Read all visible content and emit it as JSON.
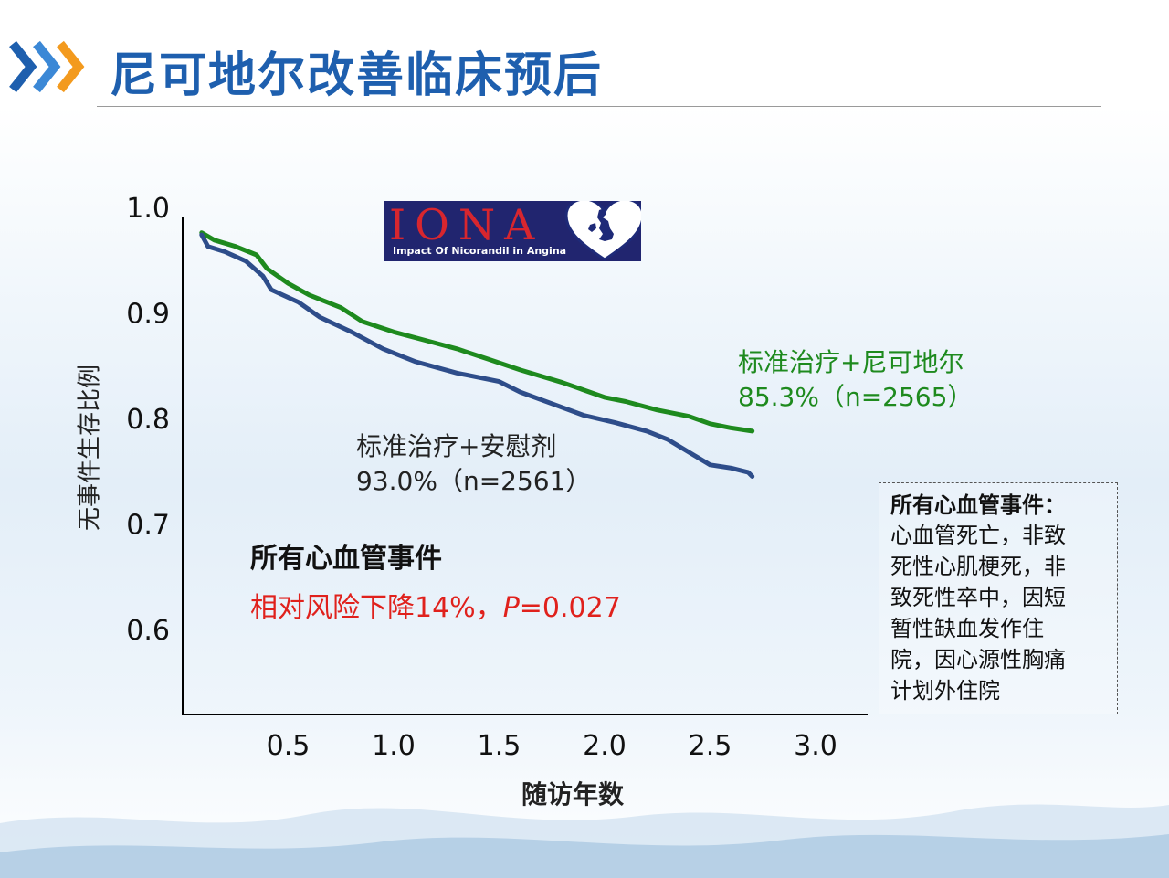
{
  "header": {
    "title": "尼可地尔改善临床预后"
  },
  "logo": {
    "word": "IONA",
    "subtitle": "Impact Of Nicorandil in Angina"
  },
  "colors": {
    "title": "#1e5fae",
    "green_series": "#1e8a1e",
    "blue_series": "#2e4d8a",
    "risk_text": "#e0211c"
  },
  "chart_data": {
    "type": "line",
    "xlabel": "随访年数",
    "ylabel": "无事件生存比例",
    "xlim": [
      0,
      3.0
    ],
    "ylim": [
      0.51,
      1.0
    ],
    "x_ticks": [
      "0.5",
      "1.0",
      "1.5",
      "2.0",
      "2.5",
      "3.0"
    ],
    "x_tick_values": [
      0.5,
      1.0,
      1.5,
      2.0,
      2.5,
      3.0
    ],
    "y_ticks": [
      "1.0",
      "0.9",
      "0.8",
      "0.7",
      "0.6"
    ],
    "y_tick_values": [
      1.0,
      0.9,
      0.8,
      0.7,
      0.6
    ],
    "grid": false,
    "series": [
      {
        "name": "标准治疗+尼可地尔",
        "color": "#1e8a1e",
        "x": [
          0.09,
          0.15,
          0.25,
          0.35,
          0.4,
          0.5,
          0.6,
          0.75,
          0.85,
          1.0,
          1.15,
          1.3,
          1.45,
          1.6,
          1.8,
          2.0,
          2.1,
          2.25,
          2.4,
          2.5,
          2.6,
          2.7
        ],
        "y": [
          0.976,
          0.969,
          0.963,
          0.955,
          0.942,
          0.928,
          0.917,
          0.905,
          0.892,
          0.882,
          0.874,
          0.866,
          0.856,
          0.846,
          0.834,
          0.82,
          0.816,
          0.808,
          0.802,
          0.795,
          0.791,
          0.788
        ]
      },
      {
        "name": "标准治疗+安慰剂",
        "color": "#2e4d8a",
        "x": [
          0.09,
          0.12,
          0.2,
          0.3,
          0.38,
          0.42,
          0.55,
          0.65,
          0.8,
          0.95,
          1.1,
          1.3,
          1.5,
          1.6,
          1.75,
          1.9,
          2.05,
          2.2,
          2.3,
          2.4,
          2.5,
          2.6,
          2.68,
          2.7
        ],
        "y": [
          0.974,
          0.963,
          0.958,
          0.949,
          0.935,
          0.922,
          0.91,
          0.896,
          0.882,
          0.866,
          0.854,
          0.843,
          0.835,
          0.825,
          0.814,
          0.803,
          0.796,
          0.788,
          0.78,
          0.768,
          0.756,
          0.753,
          0.749,
          0.745
        ]
      }
    ]
  },
  "labels": {
    "green_line1": "标准治疗+尼可地尔",
    "green_line2": "85.3%（n=2565）",
    "blue_line1": "标准治疗+安慰剂",
    "blue_line2": "93.0%（n=2561）"
  },
  "outcome": {
    "title": "所有心血管事件",
    "risk_prefix": "相对风险下降14%，",
    "p_symbol": "P",
    "p_value": "=0.027"
  },
  "definition_box": {
    "title": "所有心血管事件：",
    "body": [
      "心血管死亡，非致",
      "死性心肌梗死，非",
      "致死性卒中，因短",
      "暂性缺血发作住",
      "院，因心源性胸痛",
      "计划外住院"
    ]
  }
}
